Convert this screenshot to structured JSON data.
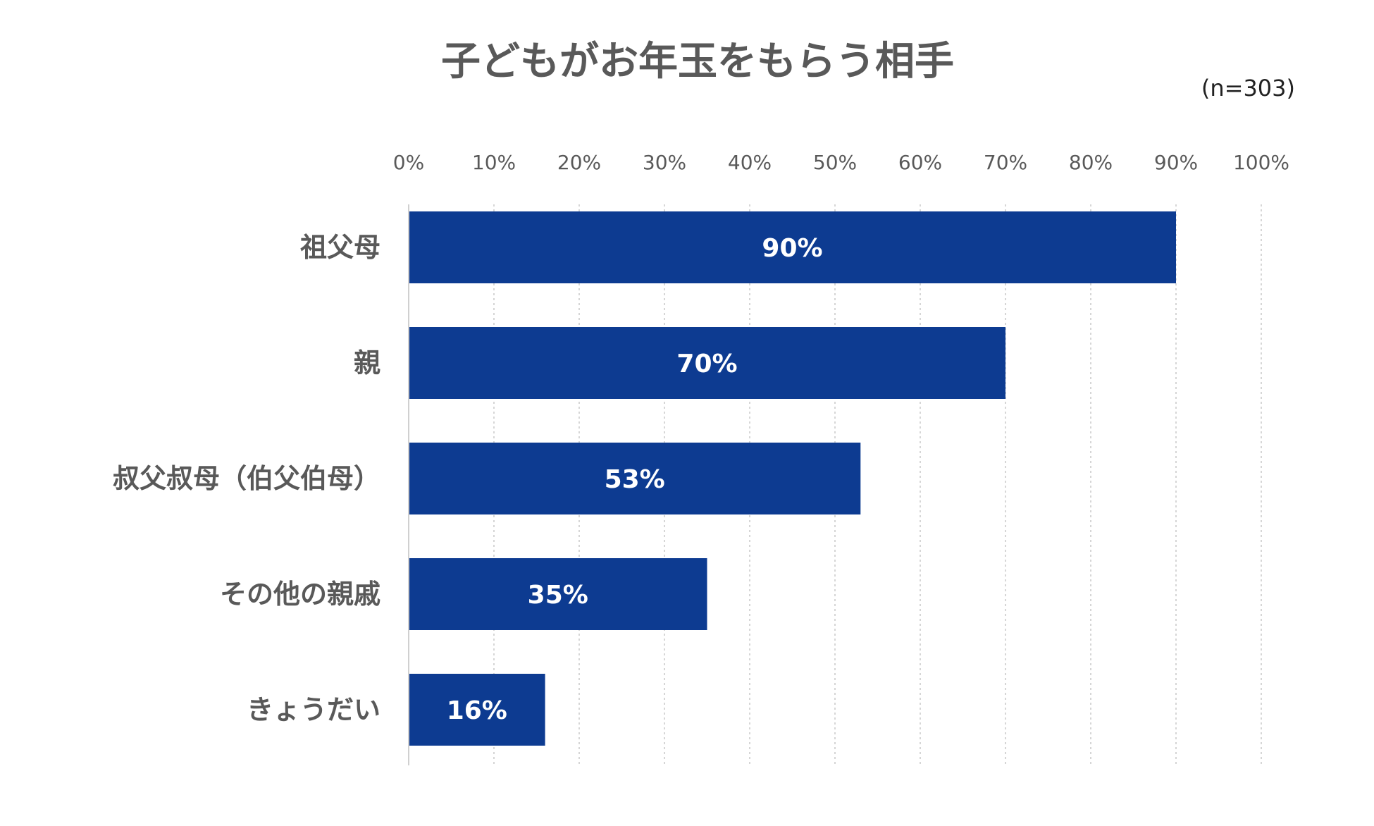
{
  "chart_data": {
    "type": "bar",
    "orientation": "horizontal",
    "title": "子どもがお年玉をもらう相手",
    "sample_size": "(n=303)",
    "categories": [
      "祖父母",
      "親",
      "叔父叔母（伯父伯母）",
      "その他の親戚",
      "きょうだい"
    ],
    "values": [
      90,
      70,
      53,
      35,
      16
    ],
    "value_labels": [
      "90%",
      "70%",
      "53%",
      "35%",
      "16%"
    ],
    "xlim": [
      0,
      100
    ],
    "ticks": [
      0,
      10,
      20,
      30,
      40,
      50,
      60,
      70,
      80,
      90,
      100
    ],
    "tick_labels": [
      "0%",
      "10%",
      "20%",
      "30%",
      "40%",
      "50%",
      "60%",
      "70%",
      "80%",
      "90%",
      "100%"
    ],
    "grid": true,
    "bar_color": "#0d3b91",
    "label_color": "#ffffff",
    "text_color": "#595959"
  }
}
